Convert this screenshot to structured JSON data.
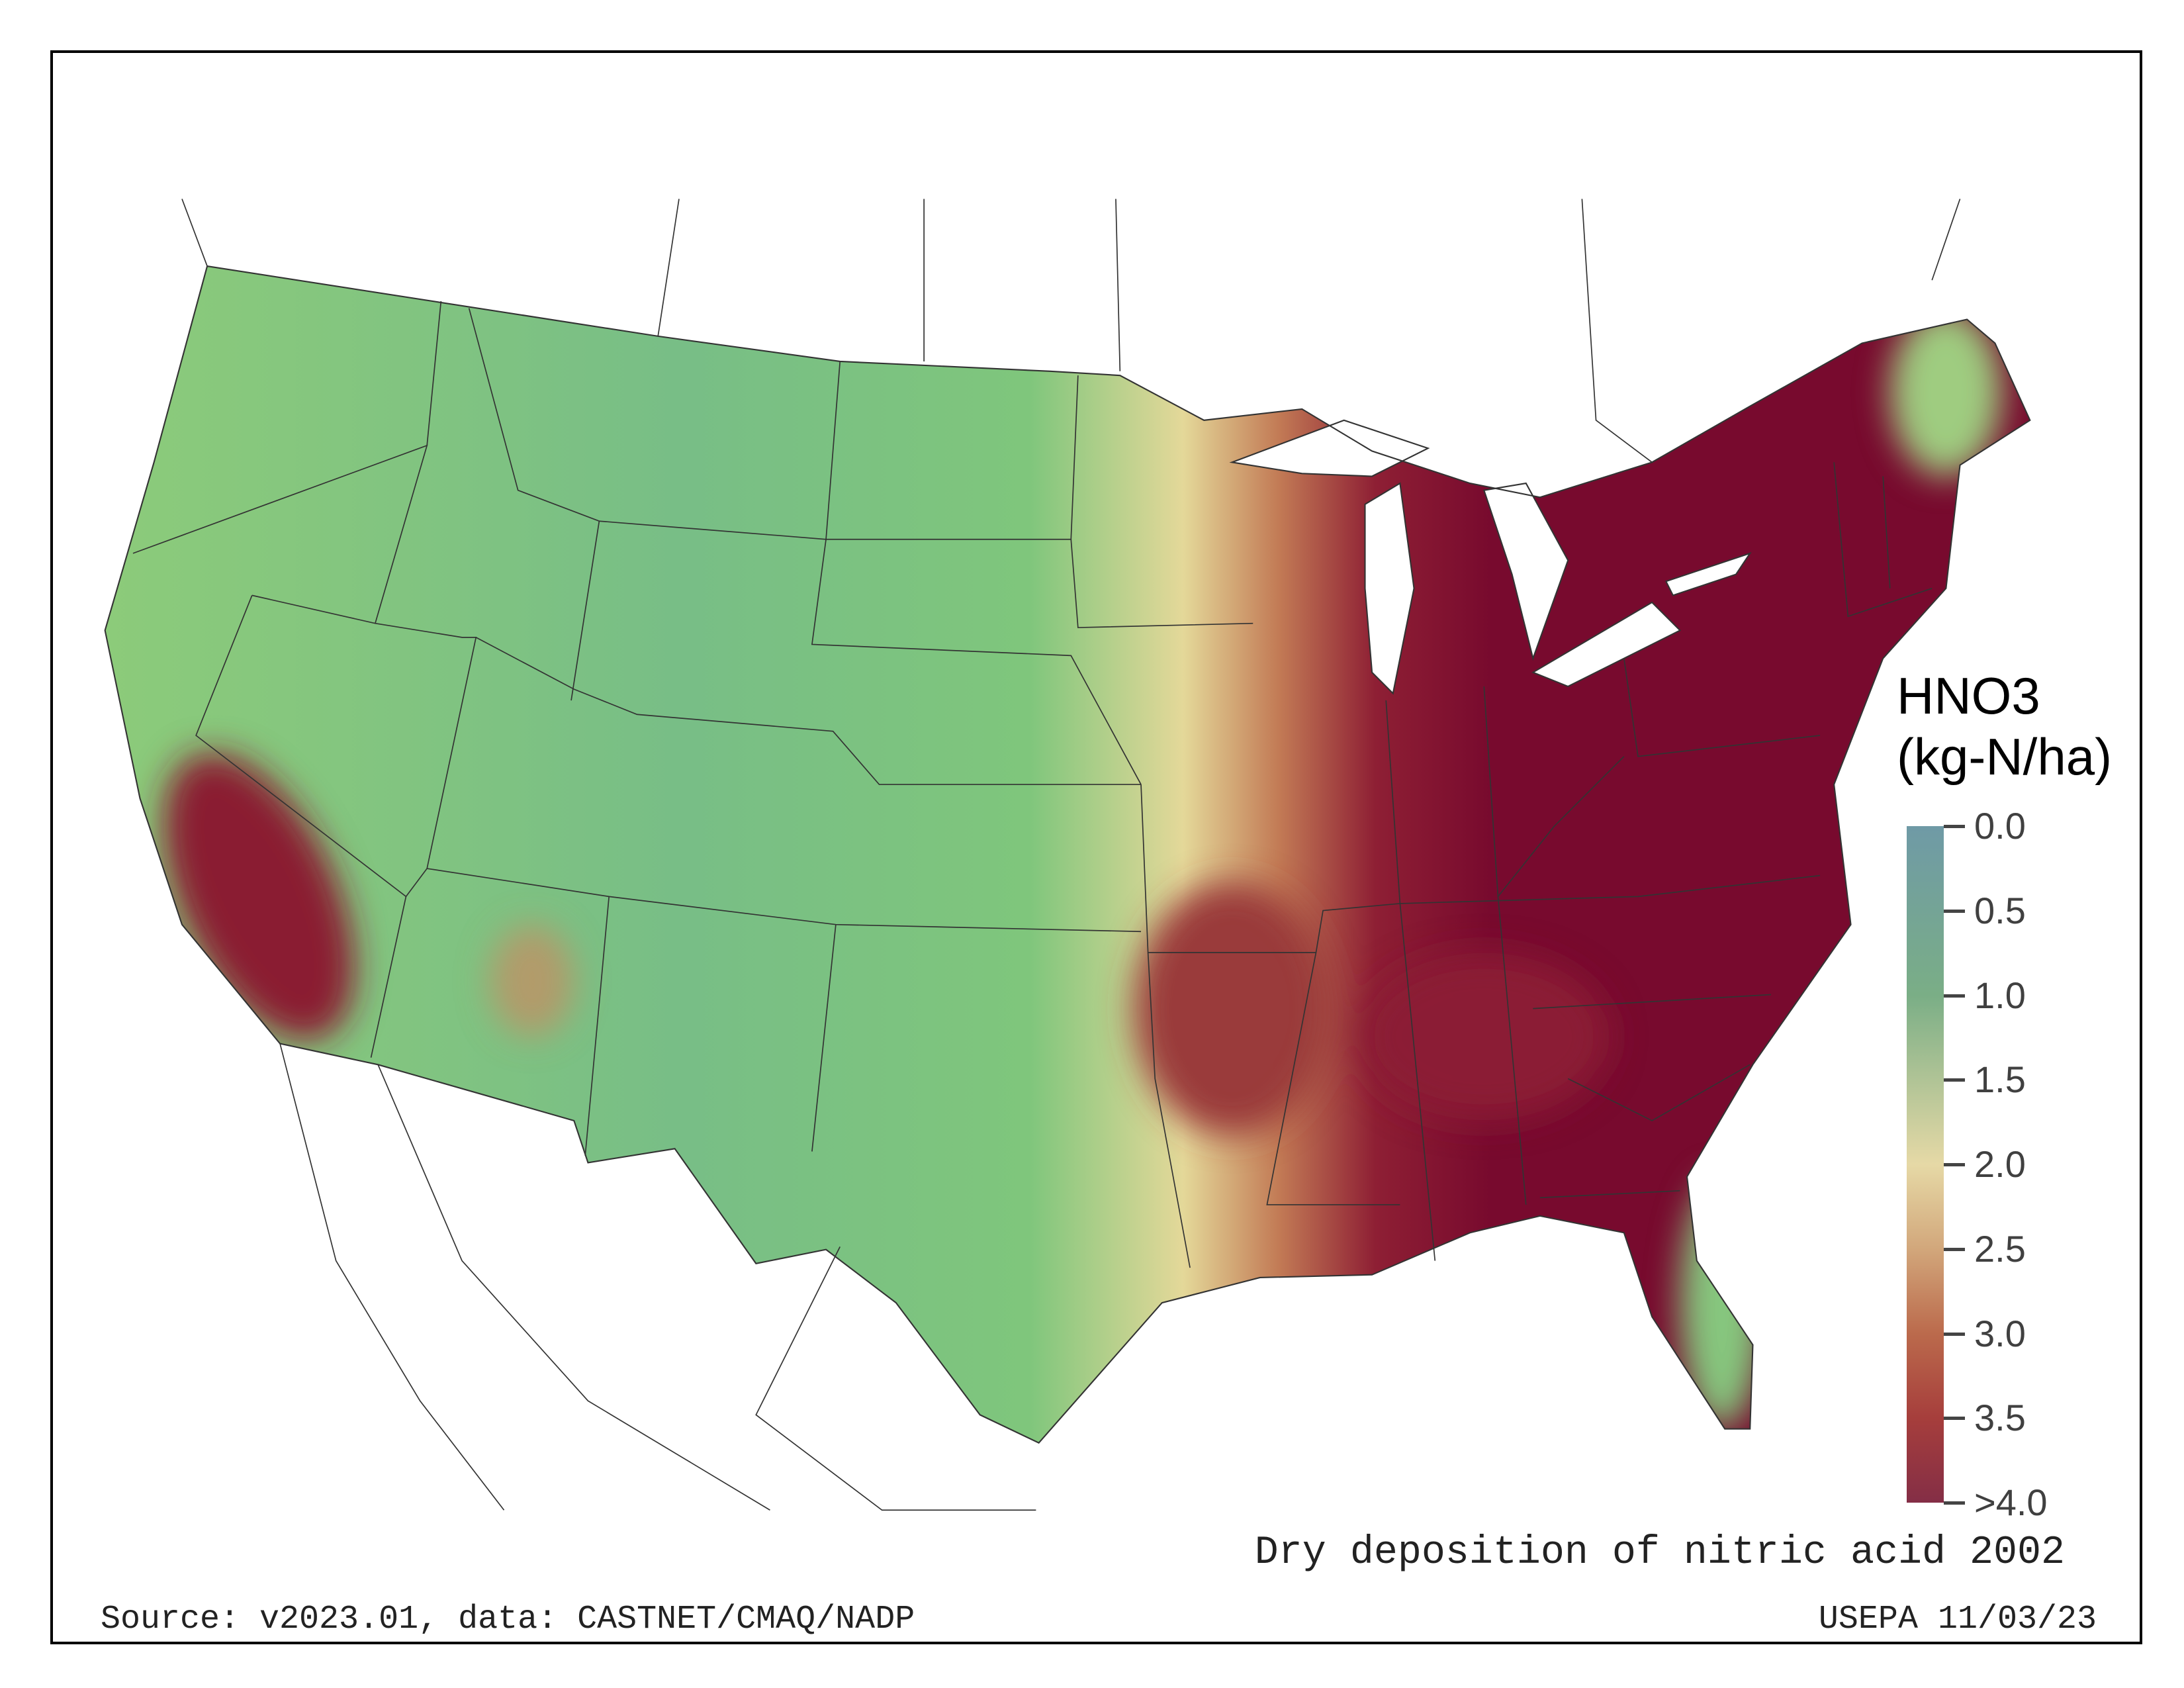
{
  "map": {
    "title": "Dry deposition of nitric acid 2002",
    "source": "Source: v2023.01, data: CASTNET/CMAQ/NADP",
    "credit": "USEPA 11/03/23",
    "region": "Contiguous United States"
  },
  "legend": {
    "title_line1": "HNO3",
    "title_line2": "(kg-N/ha)",
    "ticks": [
      "0.0",
      "0.5",
      "1.0",
      "1.5",
      "2.0",
      "2.5",
      "3.0",
      "3.5",
      ">4.0"
    ],
    "range": [
      0,
      4
    ],
    "colors": [
      "#6f9aa6",
      "#7aae86",
      "#e6d9a6",
      "#d2a77b",
      "#bb6a4c",
      "#a63e3c",
      "#842e46"
    ]
  }
}
